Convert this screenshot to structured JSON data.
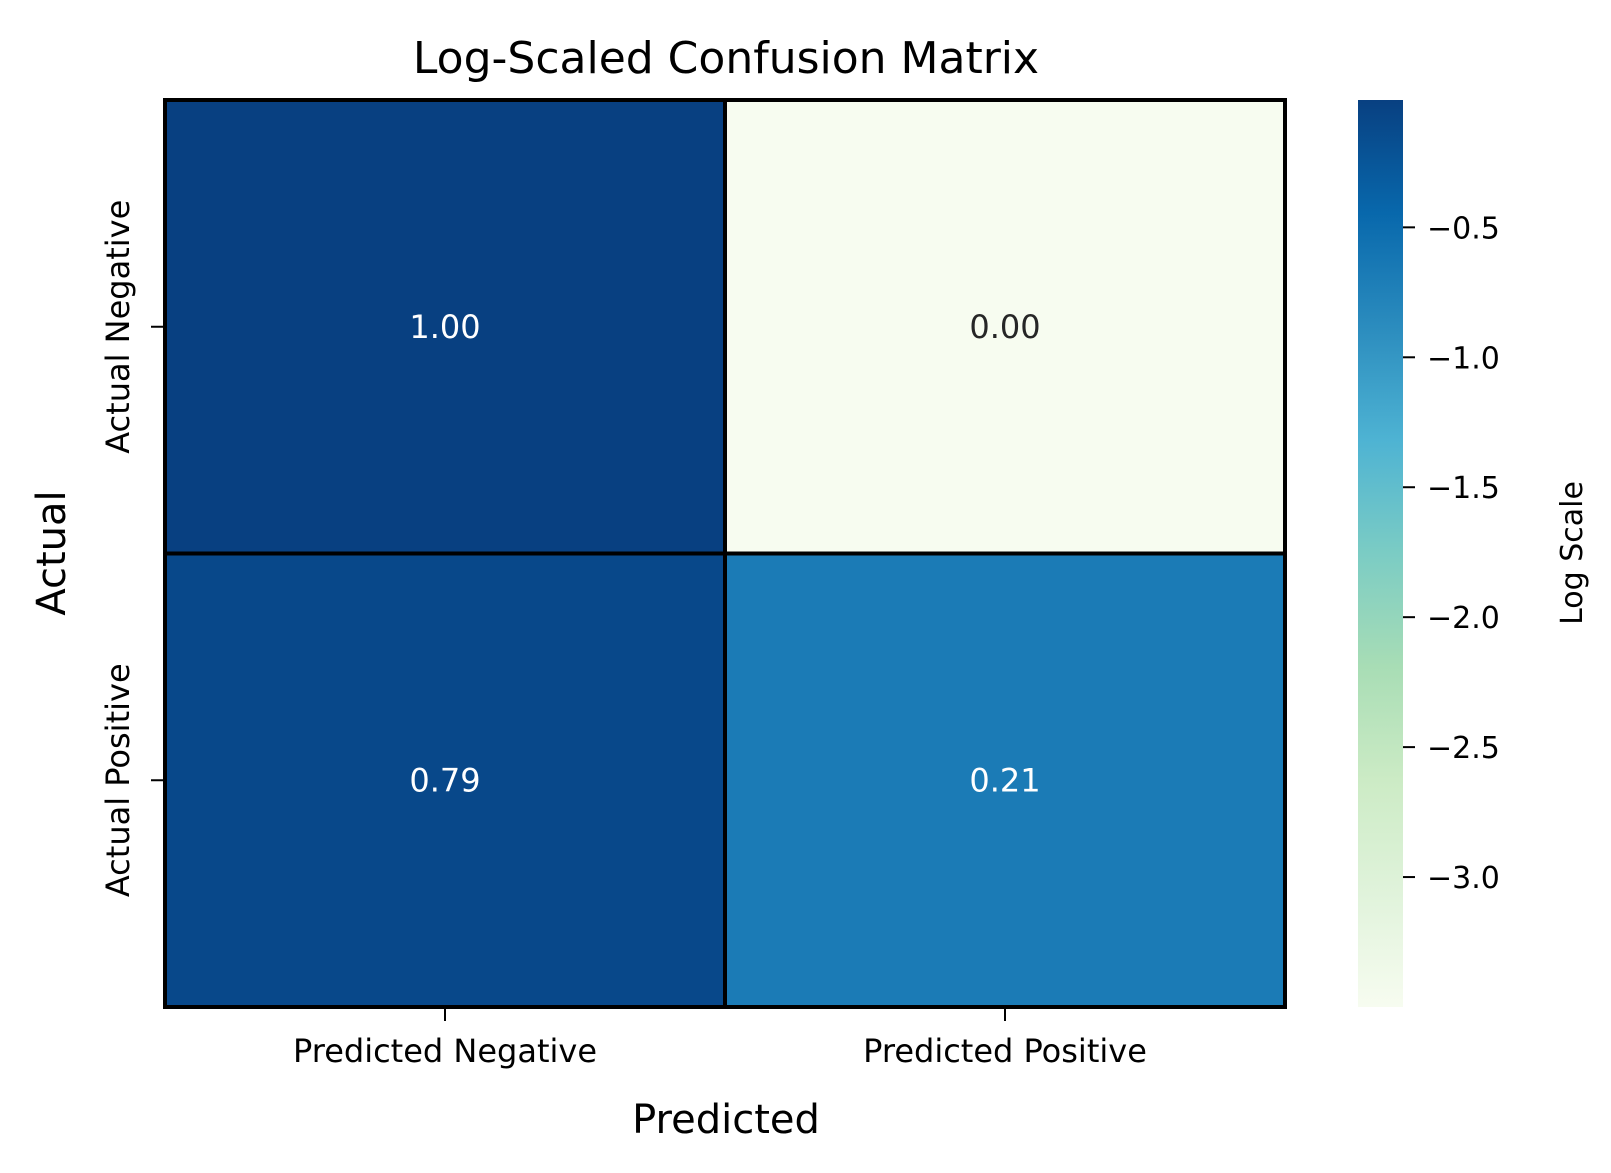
{
  "chart_data": {
    "type": "heatmap",
    "title": "Log-Scaled Confusion Matrix",
    "xlabel": "Predicted",
    "ylabel": "Actual",
    "x_categories": [
      "Predicted Negative",
      "Predicted Positive"
    ],
    "y_categories": [
      "Actual Negative",
      "Actual Positive"
    ],
    "values": [
      [
        1.0,
        0.0
      ],
      [
        0.79,
        0.21
      ]
    ],
    "cell_labels": [
      [
        "1.00",
        "0.00"
      ],
      [
        "0.79",
        "0.21"
      ]
    ],
    "log_values": [
      [
        -0.01,
        -3.5
      ],
      [
        -0.1,
        -0.68
      ]
    ],
    "colorbar": {
      "label": "Log Scale",
      "range": [
        -3.5,
        -0.01
      ],
      "ticks": [
        -0.5,
        -1.0,
        -1.5,
        -2.0,
        -2.5,
        -3.0
      ],
      "tick_labels": [
        "−0.5",
        "−1.0",
        "−1.5",
        "−2.0",
        "−2.5",
        "−3.0"
      ]
    },
    "colormap": "GnBu",
    "colormap_stops": [
      "#f7fcf0",
      "#e0f3db",
      "#ccebc5",
      "#a8ddb5",
      "#7bccc4",
      "#4eb3d3",
      "#2b8cbe",
      "#0868ac",
      "#084081"
    ],
    "cell_border_color": "#000000",
    "text_colors": {
      "light": "#ffffff",
      "dark": "#262626"
    },
    "legend": "colorbar-right",
    "grid": false
  }
}
